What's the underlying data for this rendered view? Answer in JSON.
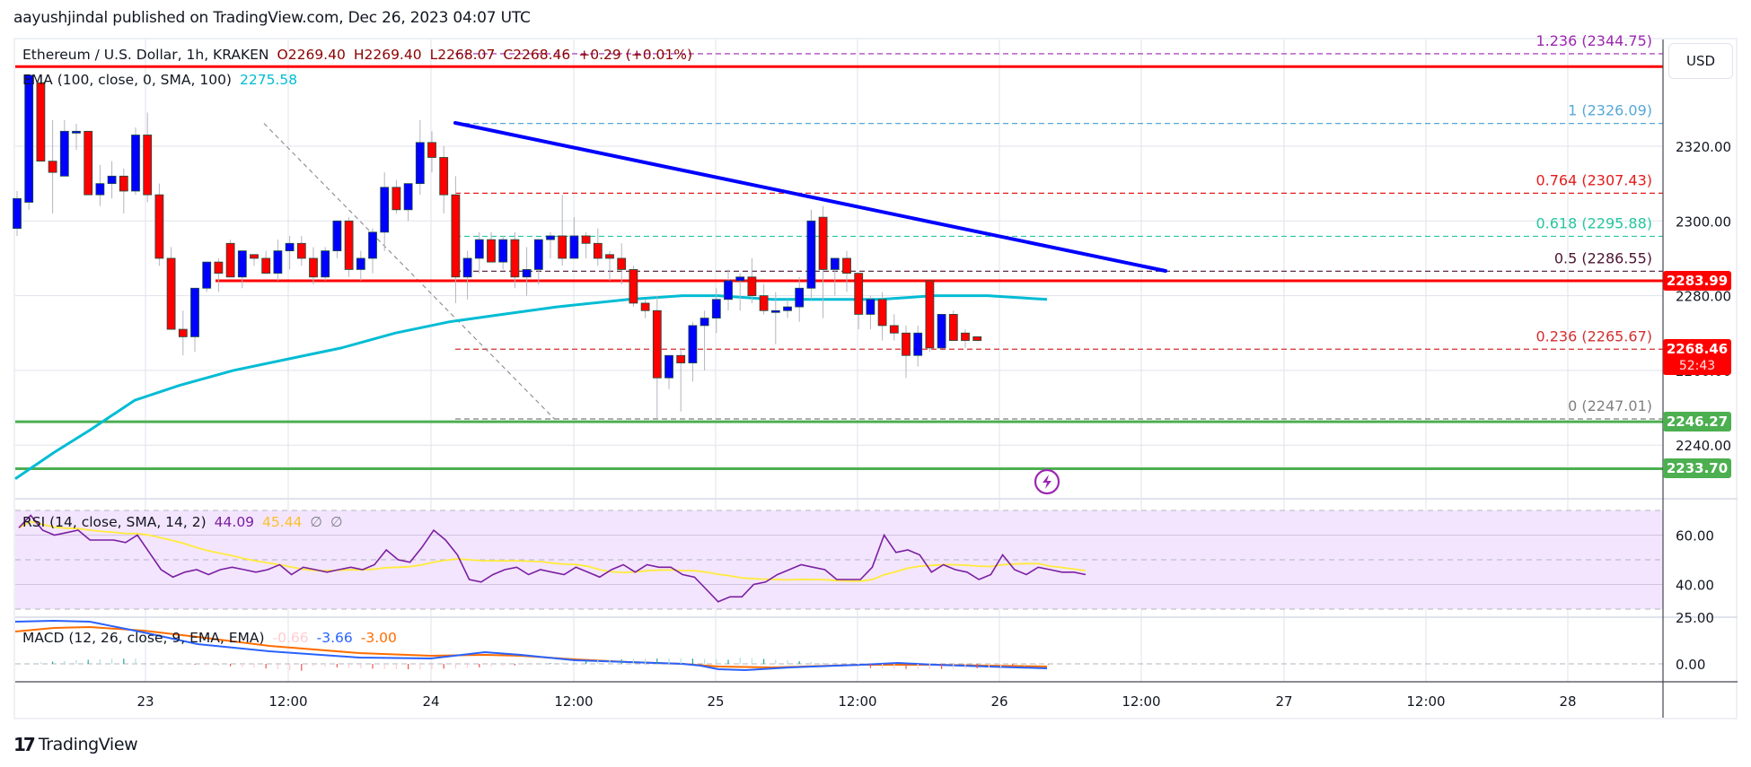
{
  "header": {
    "published": "aayushjindal published on TradingView.com, Dec 26, 2023 04:07 UTC"
  },
  "legend": {
    "symbol": "Ethereum / U.S. Dollar, 1h, KRAKEN",
    "open": "O2269.40",
    "high": "H2269.40",
    "low": "L2268.07",
    "close": "C2268.46",
    "change": "+0.29 (+0.01%)",
    "ema_label": "EMA (100, close, 0, SMA, 100)",
    "ema_value": "2275.58",
    "rsi_label": "RSI (14, close, SMA, 14, 2)",
    "rsi_value": "44.09",
    "rsi_sma_value": "45.44",
    "rsi_extra1": "∅",
    "rsi_extra2": "∅",
    "macd_label": "MACD (12, 26, close, 9, EMA, EMA)",
    "macd_hist": "-0.66",
    "macd_value": "-3.66",
    "macd_signal": "-3.00"
  },
  "price_axis": {
    "currency_button": "USD",
    "ticks": [
      "2320.00",
      "2300.00",
      "2280.00",
      "2260.00",
      "2240.00"
    ],
    "rsi_ticks": [
      "60.00",
      "40.00"
    ],
    "macd_ticks": [
      "25.00",
      "0.00"
    ],
    "badges": [
      {
        "label": "2283.99",
        "color": "#ff0000"
      },
      {
        "label": "2268.46",
        "sub": "52:43",
        "color": "#ff0000"
      },
      {
        "label": "2246.27",
        "color": "#4caf50"
      },
      {
        "label": "2233.70",
        "color": "#4caf50"
      }
    ]
  },
  "time_axis": {
    "ticks": [
      "23",
      "12:00",
      "24",
      "12:00",
      "25",
      "12:00",
      "26",
      "12:00",
      "27",
      "12:00",
      "28"
    ]
  },
  "fib_levels": [
    {
      "label": "1.236 (2344.75)",
      "ratio": 1.236,
      "price": 2344.75,
      "color": "#9c27b0"
    },
    {
      "label": "1 (2326.09)",
      "ratio": 1,
      "price": 2326.09,
      "color": "#56a8d8"
    },
    {
      "label": "0.764 (2307.43)",
      "ratio": 0.764,
      "price": 2307.43,
      "color": "#e51b1b"
    },
    {
      "label": "0.618 (2295.88)",
      "ratio": 0.618,
      "price": 2295.88,
      "color": "#26c6a0"
    },
    {
      "label": "0.5 (2286.55)",
      "ratio": 0.5,
      "price": 2286.55,
      "color": "#4a1530"
    },
    {
      "label": "0.236 (2265.67)",
      "ratio": 0.236,
      "price": 2265.67,
      "color": "#d32f2f"
    },
    {
      "label": "0 (2247.01)",
      "ratio": 0,
      "price": 2247.01,
      "color": "#808080"
    }
  ],
  "horizontal_lines": [
    {
      "price": 2341.3,
      "color": "#ff0000",
      "label": "resistance-top"
    },
    {
      "price": 2283.99,
      "color": "#ff0000",
      "label": "resistance"
    },
    {
      "price": 2246.27,
      "color": "#4caf50",
      "label": "support-1"
    },
    {
      "price": 2233.7,
      "color": "#4caf50",
      "label": "support-2"
    }
  ],
  "trendline": {
    "from": {
      "hour": 34,
      "price": 2326.09
    },
    "to": {
      "hour": 95,
      "price": 2286.55
    },
    "color": "#0000ff"
  },
  "footer": {
    "brand": "TradingView"
  },
  "chart_data": {
    "type": "candlestick",
    "title": "Ethereum / U.S. Dollar, 1h, KRAKEN",
    "xlabel": "",
    "ylabel": "USD",
    "ylim": [
      2222,
      2348
    ],
    "x_ticks": [
      "23",
      "12:00",
      "24",
      "12:00",
      "25",
      "12:00",
      "26",
      "12:00",
      "27",
      "12:00",
      "28"
    ],
    "candles": [
      [
        2298,
        2308,
        2296,
        2306
      ],
      [
        2305,
        2339,
        2303,
        2339
      ],
      [
        2337,
        2339,
        2316,
        2316
      ],
      [
        2316,
        2327,
        2302,
        2313
      ],
      [
        2312,
        2327,
        2312,
        2324
      ],
      [
        2324,
        2326,
        2319,
        2324
      ],
      [
        2324,
        2324,
        2307,
        2307
      ],
      [
        2307,
        2315,
        2304,
        2310
      ],
      [
        2310,
        2316,
        2306,
        2312
      ],
      [
        2312,
        2314,
        2302,
        2308
      ],
      [
        2308,
        2325,
        2307,
        2323
      ],
      [
        2323,
        2329,
        2305,
        2307
      ],
      [
        2307,
        2310,
        2288,
        2290
      ],
      [
        2290,
        2293,
        2271,
        2271
      ],
      [
        2271,
        2276,
        2264,
        2269
      ],
      [
        2269,
        2282,
        2265,
        2282
      ],
      [
        2282,
        2289,
        2281,
        2289
      ],
      [
        2289,
        2290,
        2281,
        2286
      ],
      [
        2294,
        2295,
        2285,
        2285
      ],
      [
        2285,
        2291,
        2282,
        2292
      ],
      [
        2291,
        2291,
        2288,
        2290
      ],
      [
        2290,
        2292,
        2287,
        2286
      ],
      [
        2286,
        2295,
        2284,
        2292
      ],
      [
        2292,
        2296,
        2287,
        2294
      ],
      [
        2294,
        2296,
        2288,
        2290
      ],
      [
        2290,
        2293,
        2283,
        2285
      ],
      [
        2285,
        2293,
        2284,
        2292
      ],
      [
        2292,
        2300,
        2290,
        2300
      ],
      [
        2300,
        2301,
        2285,
        2287
      ],
      [
        2287,
        2292,
        2284,
        2290
      ],
      [
        2290,
        2298,
        2286,
        2297
      ],
      [
        2297,
        2313,
        2292,
        2309
      ],
      [
        2309,
        2311,
        2302,
        2303
      ],
      [
        2303,
        2309,
        2300,
        2310
      ],
      [
        2310,
        2327,
        2307,
        2321
      ],
      [
        2321,
        2324,
        2313,
        2317
      ],
      [
        2317,
        2320,
        2302,
        2307
      ],
      [
        2307,
        2312,
        2278,
        2285
      ],
      [
        2285,
        2292,
        2279,
        2290
      ],
      [
        2290,
        2297,
        2286,
        2295
      ],
      [
        2295,
        2297,
        2289,
        2289
      ],
      [
        2289,
        2296,
        2287,
        2295
      ],
      [
        2295,
        2297,
        2282,
        2285
      ],
      [
        2285,
        2293,
        2280,
        2287
      ],
      [
        2287,
        2294,
        2283,
        2295
      ],
      [
        2295,
        2297,
        2290,
        2296
      ],
      [
        2296,
        2307,
        2288,
        2290
      ],
      [
        2290,
        2301,
        2290,
        2296
      ],
      [
        2296,
        2297,
        2290,
        2294
      ],
      [
        2294,
        2298,
        2288,
        2290
      ],
      [
        2291,
        2292,
        2284,
        2290
      ],
      [
        2290,
        2294,
        2283,
        2287
      ],
      [
        2287,
        2288,
        2277,
        2278
      ],
      [
        2278,
        2279,
        2274,
        2276
      ],
      [
        2276,
        2280,
        2247,
        2258
      ],
      [
        2258,
        2264,
        2255,
        2264
      ],
      [
        2264,
        2266,
        2249,
        2262
      ],
      [
        2262,
        2273,
        2257,
        2272
      ],
      [
        2272,
        2276,
        2260,
        2274
      ],
      [
        2274,
        2282,
        2270,
        2279
      ],
      [
        2279,
        2287,
        2276,
        2284
      ],
      [
        2284,
        2286,
        2276,
        2285
      ],
      [
        2285,
        2290,
        2278,
        2280
      ],
      [
        2280,
        2283,
        2275,
        2276
      ],
      [
        2276,
        2281,
        2267,
        2276
      ],
      [
        2276,
        2279,
        2274,
        2277
      ],
      [
        2277,
        2285,
        2273,
        2282
      ],
      [
        2282,
        2303,
        2279,
        2300
      ],
      [
        2301,
        2304,
        2274,
        2287
      ],
      [
        2287,
        2289,
        2280,
        2290
      ],
      [
        2290,
        2292,
        2281,
        2286
      ],
      [
        2286,
        2286,
        2271,
        2275
      ],
      [
        2275,
        2280,
        2271,
        2279
      ],
      [
        2279,
        2281,
        2268,
        2272
      ],
      [
        2272,
        2275,
        2268,
        2270
      ],
      [
        2270,
        2272,
        2258,
        2264
      ],
      [
        2264,
        2272,
        2261,
        2270
      ],
      [
        2284,
        2284,
        2265,
        2266
      ],
      [
        2266,
        2270,
        2266,
        2275
      ],
      [
        2275,
        2276,
        2268,
        2268
      ],
      [
        2270,
        2271,
        2266,
        2268
      ],
      [
        2269,
        2269,
        2268,
        2268
      ]
    ],
    "candle_format": [
      "open",
      "high",
      "low",
      "close"
    ],
    "series": [
      {
        "name": "EMA 100",
        "color": "#00bcd4",
        "final_value": 2275.58
      },
      {
        "name": "RSI 14",
        "color": "#7b1fa2",
        "final_value": 44.09,
        "range": [
          0,
          100
        ],
        "bands": [
          30,
          70
        ]
      },
      {
        "name": "RSI SMA",
        "color": "#ffeb3b",
        "final_value": 45.44
      },
      {
        "name": "MACD",
        "color": "#2962ff",
        "final_value": -3.66
      },
      {
        "name": "Signal",
        "color": "#ff6d00",
        "final_value": -3.0
      },
      {
        "name": "Histogram",
        "final_value": -0.66
      }
    ]
  }
}
